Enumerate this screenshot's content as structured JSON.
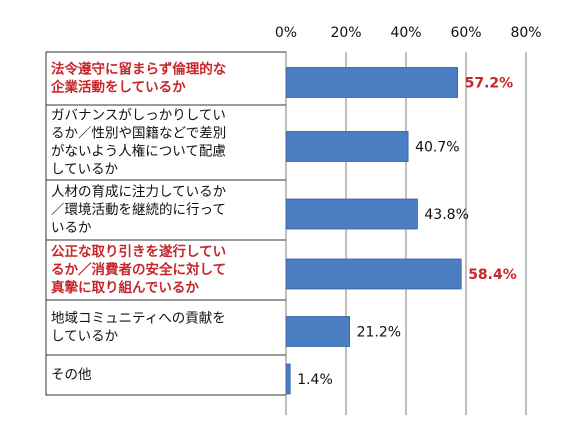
{
  "chart_data": {
    "type": "bar",
    "orientation": "horizontal",
    "xlim": [
      0,
      80
    ],
    "tick_values": [
      0,
      20,
      40,
      60,
      80
    ],
    "tick_labels": [
      "0%",
      "20%",
      "40%",
      "60%",
      "80%"
    ],
    "grid": true,
    "title": "",
    "xlabel": "",
    "ylabel": "",
    "categories": [
      [
        "法令遵守に留まらず倫理的な",
        "企業活動をしているか"
      ],
      [
        "ガバナンスがしっかりしてい",
        "るか／性別や国籍などで差別",
        "がないよう人権について配慮",
        "しているか"
      ],
      [
        "人材の育成に注力しているか",
        "／環境活動を継続的に行って",
        "いるか"
      ],
      [
        "公正な取り引きを遂行してい",
        "るか／消費者の安全に対して",
        "真摯に取り組んでいるか"
      ],
      [
        "地域コミュニティへの貢献を",
        "しているか"
      ],
      [
        "その他"
      ]
    ],
    "values": [
      57.2,
      40.7,
      43.8,
      58.4,
      21.2,
      1.4
    ],
    "value_labels": [
      "57.2%",
      "40.7%",
      "43.8%",
      "58.4%",
      "21.2%",
      "1.4%"
    ],
    "highlighted": [
      true,
      false,
      false,
      true,
      false,
      false
    ],
    "colors": {
      "bar": "#4a7dc2",
      "bar_border": "#35619f",
      "highlight_text": "#c8262d",
      "text": "#111111",
      "grid": "#7f7f7f"
    }
  }
}
